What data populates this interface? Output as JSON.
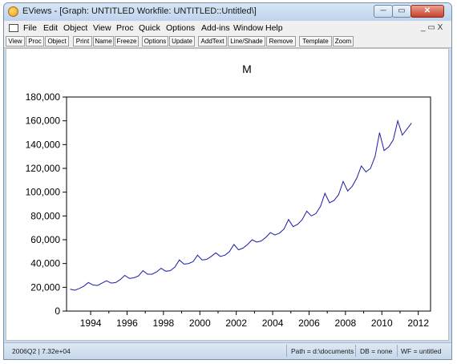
{
  "window": {
    "title": "EViews - [Graph: UNTITLED   Workfile: UNTITLED::Untitled\\]",
    "minimize": "─",
    "maximize": "▭",
    "close": "✕"
  },
  "menu": {
    "items": [
      "File",
      "Edit",
      "Object",
      "View",
      "Proc",
      "Quick",
      "Options",
      "Add-ins",
      "Window",
      "Help"
    ],
    "mdi_controls": "_ ▭ X"
  },
  "toolbar": {
    "buttons": [
      "View",
      "Proc",
      "Object",
      "Print",
      "Name",
      "Freeze",
      "Options",
      "Update",
      "AddText",
      "Line/Shade",
      "Remove",
      "Template",
      "Zoom"
    ]
  },
  "status": {
    "left": "2006Q2  |  7.32e+04",
    "path": "Path = d:\\documents",
    "db": "DB = none",
    "wf": "WF = untitled"
  },
  "chart_data": {
    "type": "line",
    "title": "M",
    "xlabel": "",
    "ylabel": "",
    "frequency": "quarterly",
    "start": "1993Q2",
    "xticks": [
      "1994",
      "1996",
      "1998",
      "2000",
      "2002",
      "2004",
      "2006",
      "2008",
      "2010",
      "2012"
    ],
    "yticks": [
      "0",
      "20,000",
      "40,000",
      "60,000",
      "80,000",
      "100,000",
      "120,000",
      "140,000",
      "160,000",
      "180,000"
    ],
    "ylim": [
      0,
      180000
    ],
    "grid": false,
    "color": "#1c1ca8",
    "series": [
      {
        "values": [
          18500,
          17500,
          19000,
          21000,
          24000,
          22000,
          21500,
          23500,
          25500,
          23500,
          24000,
          26500,
          30000,
          27500,
          28000,
          29500,
          34000,
          31000,
          31000,
          33000,
          36000,
          33500,
          34000,
          37000,
          43000,
          39500,
          40000,
          41500,
          47000,
          43000,
          43500,
          46000,
          49000,
          46000,
          47000,
          50000,
          56000,
          51500,
          53000,
          56000,
          60000,
          58000,
          59000,
          62000,
          66000,
          64000,
          65500,
          69000,
          77000,
          71000,
          73000,
          77000,
          84000,
          80000,
          82000,
          88000,
          99000,
          91000,
          93000,
          98000,
          109000,
          101000,
          105000,
          112000,
          122000,
          117000,
          120000,
          130000,
          150000,
          135000,
          138000,
          144000,
          160000,
          148000,
          153000,
          158000
        ]
      }
    ]
  }
}
